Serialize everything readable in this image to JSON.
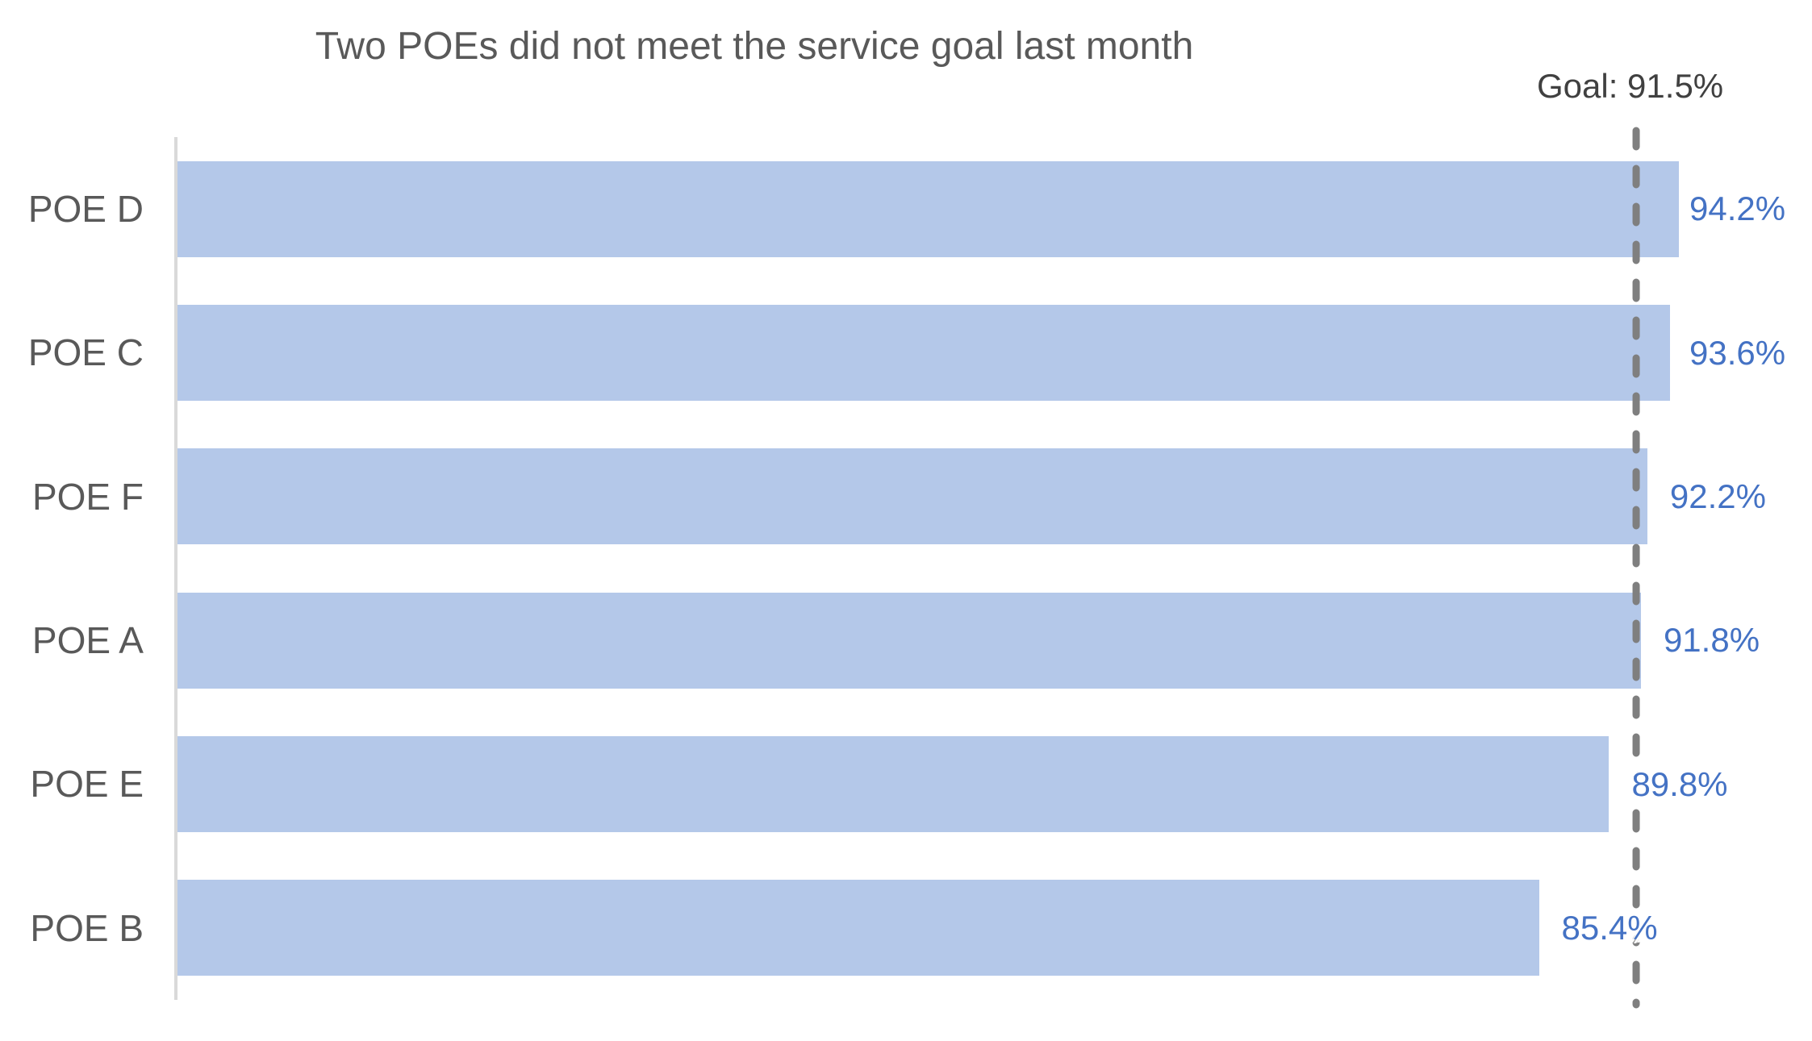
{
  "title": "Two POEs did not meet the service goal last month",
  "goal_annotation": "Goal: 91.5%",
  "chart_data": {
    "type": "bar",
    "orientation": "horizontal",
    "title": "Two POEs did not meet the service goal last month",
    "categories": [
      "POE D",
      "POE C",
      "POE F",
      "POE A",
      "POE E",
      "POE B"
    ],
    "values": [
      94.2,
      93.6,
      92.2,
      91.8,
      89.8,
      85.4
    ],
    "value_labels": [
      "94.2%",
      "93.6%",
      "92.2%",
      "91.8%",
      "89.8%",
      "85.4%"
    ],
    "unit": "%",
    "goal_value": 91.5,
    "goal_label": "Goal: 91.5%",
    "xlim": [
      0,
      100
    ],
    "grid": false,
    "legend": false,
    "annotations": [
      "Goal: 91.5%"
    ]
  },
  "colors": {
    "bar_fill": "#B4C8E9",
    "value_label": "#4472C4",
    "title_text": "#595959",
    "category_text": "#595959",
    "goal_text": "#404040",
    "goal_line": "#7F7F7F",
    "axis_line": "#D9D9D9",
    "background": "#FFFFFF"
  }
}
